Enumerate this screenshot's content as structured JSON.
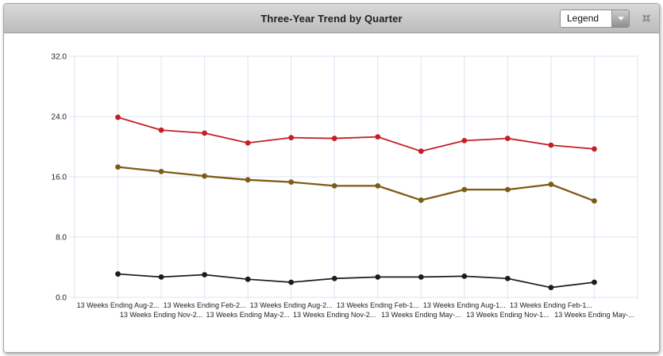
{
  "header": {
    "title": "Three-Year Trend by Quarter",
    "legend_label": "Legend"
  },
  "chart_data": {
    "type": "line",
    "title": "Three-Year Trend by Quarter",
    "categories": [
      "13 Weeks Ending Aug-2...",
      "13 Weeks Ending Nov-2...",
      "13 Weeks Ending Feb-2...",
      "13 Weeks Ending May-2...",
      "13 Weeks Ending Aug-2...",
      "13 Weeks Ending Nov-2...",
      "13 Weeks Ending Feb-1...",
      "13 Weeks Ending May-...",
      "13 Weeks Ending Aug-1...",
      "13 Weeks Ending Nov-1...",
      "13 Weeks Ending Feb-1...",
      "13 Weeks Ending May-..."
    ],
    "series": [
      {
        "color": "#c22026",
        "line_width": 1.8,
        "values": [
          23.9,
          22.2,
          21.8,
          20.5,
          21.2,
          21.1,
          21.3,
          19.4,
          20.8,
          21.1,
          20.2,
          19.7
        ]
      },
      {
        "color": "#7e5c16",
        "line_width": 2.3,
        "values": [
          17.3,
          16.7,
          16.1,
          15.6,
          15.3,
          14.8,
          14.8,
          12.9,
          14.3,
          14.3,
          15.0,
          12.8
        ]
      },
      {
        "color": "#1c1c1c",
        "line_width": 1.7,
        "values": [
          3.1,
          2.7,
          3.0,
          2.4,
          2.0,
          2.5,
          2.7,
          2.7,
          2.8,
          2.5,
          1.3,
          2.0
        ]
      }
    ],
    "ylim": [
      0,
      32
    ],
    "y_ticks": [
      "0.0",
      "8.0",
      "16.0",
      "24.0",
      "32.0"
    ],
    "grid": true,
    "grid_color": "#dbe5f1",
    "tick_color": "#c6c6c6",
    "label_color": "#222222",
    "legend_position": "collapsed-dropdown"
  }
}
